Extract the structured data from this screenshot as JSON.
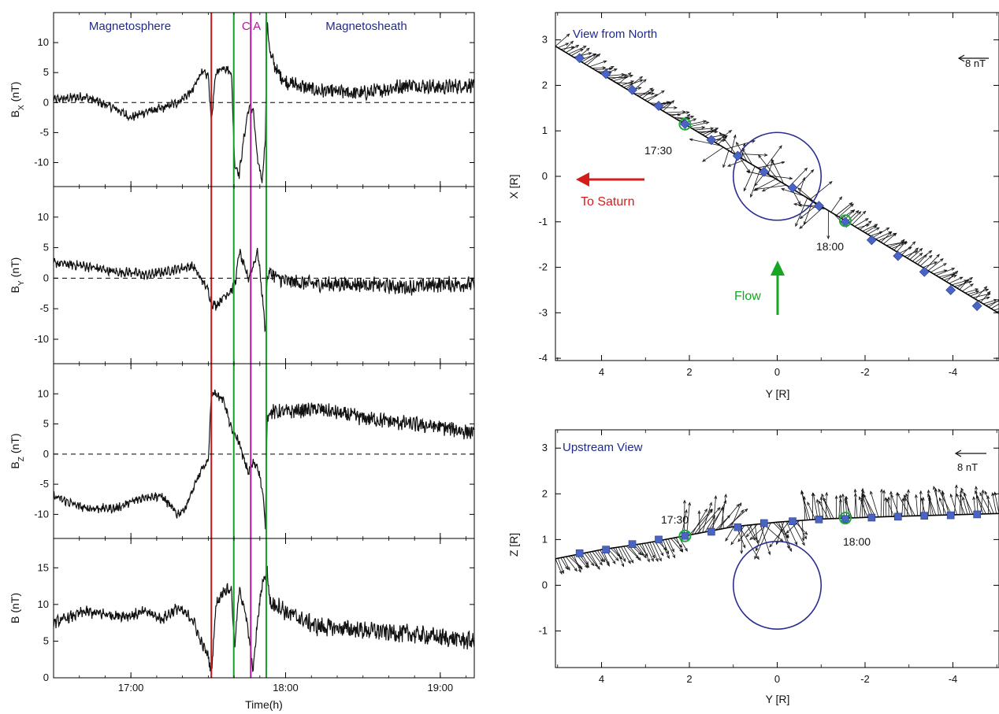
{
  "chart_data": [
    {
      "type": "line",
      "id": "time-series",
      "xlabel": "Time(h)",
      "xlim": [
        16.5,
        19.22
      ],
      "xticks": [
        17.0,
        18.0,
        19.0
      ],
      "xtick_labels": [
        "17:00",
        "18:00",
        "19:00"
      ],
      "region_labels": [
        {
          "text": "Magnetosphere",
          "x": 16.85,
          "color": "#1f2a8a"
        },
        {
          "text": "C A",
          "x": 17.775,
          "color": "#b1179a"
        },
        {
          "text": "Magnetosheath",
          "x": 18.4,
          "color": "#1f2a8a"
        }
      ],
      "vertical_markers": [
        {
          "x": 17.52,
          "color": "#c0161c"
        },
        {
          "x": 17.665,
          "color": "#15a02a"
        },
        {
          "x": 17.775,
          "color": "#b1179a"
        },
        {
          "x": 17.875,
          "color": "#15a02a"
        }
      ],
      "panels": [
        {
          "ylabel": "B_X (nT)",
          "ylabel_main": "B",
          "ylabel_sub": "X",
          "ylabel_unit": "(nT)",
          "ylim": [
            -14,
            15
          ],
          "yticks": [
            -10,
            -5,
            0,
            5,
            10
          ],
          "zero_line": true,
          "series": [
            {
              "x": [
                16.5,
                16.7,
                16.9,
                17.0,
                17.1,
                17.2,
                17.3,
                17.4,
                17.45,
                17.5,
                17.52,
                17.55,
                17.6,
                17.65,
                17.67,
                17.7,
                17.73,
                17.76,
                17.79,
                17.82,
                17.85,
                17.87,
                17.88,
                17.9,
                17.95,
                18.0,
                18.2,
                18.5,
                18.8,
                19.0,
                19.22
              ],
              "y": [
                0.5,
                1,
                -1,
                -2.5,
                -1.5,
                -1,
                0,
                2,
                5,
                4.5,
                -3,
                5,
                6,
                5,
                -10,
                -12,
                -6,
                -1,
                -1,
                -10,
                -13,
                -5,
                14,
                8,
                5,
                3.5,
                2,
                1.5,
                3,
                2.5,
                3
              ]
            }
          ]
        },
        {
          "ylabel": "B_Y (nT)",
          "ylabel_main": "B",
          "ylabel_sub": "Y",
          "ylabel_unit": "(nT)",
          "ylim": [
            -14,
            15
          ],
          "yticks": [
            -10,
            -5,
            0,
            5,
            10
          ],
          "zero_line": true,
          "series": [
            {
              "x": [
                16.5,
                16.7,
                16.9,
                17.0,
                17.1,
                17.2,
                17.3,
                17.4,
                17.45,
                17.5,
                17.52,
                17.55,
                17.6,
                17.65,
                17.68,
                17.7,
                17.73,
                17.76,
                17.79,
                17.82,
                17.85,
                17.87,
                17.88,
                17.9,
                17.95,
                18.0,
                18.2,
                18.5,
                18.8,
                19.0,
                19.22
              ],
              "y": [
                2.5,
                2,
                1,
                1,
                0.5,
                1,
                1.5,
                2,
                0,
                -2,
                -4,
                -4.5,
                -3,
                -2,
                0,
                4.5,
                2,
                0,
                2,
                4.5,
                -3,
                -9,
                0,
                1,
                0,
                -0.5,
                -1,
                -1,
                -1.5,
                -1,
                -1
              ]
            }
          ]
        },
        {
          "ylabel": "B_Z (nT)",
          "ylabel_main": "B",
          "ylabel_sub": "Z",
          "ylabel_unit": "(nT)",
          "ylim": [
            -14,
            15
          ],
          "yticks": [
            -10,
            -5,
            0,
            5,
            10
          ],
          "zero_line": true,
          "series": [
            {
              "x": [
                16.5,
                16.7,
                16.9,
                17.0,
                17.1,
                17.2,
                17.3,
                17.35,
                17.4,
                17.45,
                17.5,
                17.52,
                17.55,
                17.6,
                17.65,
                17.7,
                17.73,
                17.76,
                17.79,
                17.82,
                17.85,
                17.87,
                17.88,
                17.9,
                17.95,
                18.0,
                18.2,
                18.5,
                18.8,
                19.0,
                19.22
              ],
              "y": [
                -7,
                -9,
                -9,
                -8,
                -7,
                -7,
                -10,
                -9,
                -6,
                -3,
                -1,
                10,
                10,
                9,
                4,
                2,
                -1,
                -3,
                -1.5,
                -2,
                -6,
                -12,
                6,
                7,
                7,
                7,
                7.5,
                6,
                5,
                4.5,
                3.5
              ]
            }
          ]
        },
        {
          "ylabel": "B (nT)",
          "ylabel_main": "B",
          "ylabel_sub": "",
          "ylabel_unit": "(nT)",
          "ylim": [
            0,
            19
          ],
          "yticks": [
            0,
            5,
            10,
            15
          ],
          "zero_line": false,
          "series": [
            {
              "x": [
                16.5,
                16.7,
                16.9,
                17.0,
                17.1,
                17.2,
                17.3,
                17.4,
                17.45,
                17.5,
                17.52,
                17.55,
                17.6,
                17.65,
                17.67,
                17.7,
                17.73,
                17.76,
                17.79,
                17.82,
                17.85,
                17.87,
                17.88,
                17.9,
                17.95,
                18.0,
                18.2,
                18.5,
                18.8,
                19.0,
                19.22
              ],
              "y": [
                7.5,
                9,
                8.5,
                8.5,
                9,
                8,
                9.5,
                8,
                5,
                3,
                0.5,
                10,
                12,
                12,
                4,
                12,
                10,
                6,
                1,
                8,
                13,
                14,
                15,
                10,
                10,
                9,
                7,
                6.5,
                6,
                5.5,
                5
              ]
            }
          ]
        }
      ]
    },
    {
      "type": "vector-field",
      "id": "view-from-north",
      "title": "View from North",
      "xlabel": "Y [R]",
      "ylabel": "X [R]",
      "xlim": [
        5.05,
        -5.05
      ],
      "ylim": [
        -4.05,
        3.6
      ],
      "xticks": [
        4,
        2,
        0,
        -2,
        -4
      ],
      "yticks": [
        -4,
        -3,
        -2,
        -1,
        0,
        1,
        2,
        3
      ],
      "scale_label": "8 nT",
      "trajectory": [
        [
          5.2,
          2.95
        ],
        [
          -5.2,
          -3.1
        ]
      ],
      "markers": [
        [
          4.5,
          2.6
        ],
        [
          3.9,
          2.25
        ],
        [
          3.3,
          1.9
        ],
        [
          2.7,
          1.55
        ],
        [
          2.1,
          1.15
        ],
        [
          1.5,
          0.8
        ],
        [
          0.9,
          0.45
        ],
        [
          0.3,
          0.1
        ],
        [
          -0.35,
          -0.25
        ],
        [
          -0.95,
          -0.65
        ],
        [
          -1.55,
          -1.0
        ],
        [
          -2.15,
          -1.4
        ],
        [
          -2.75,
          -1.75
        ],
        [
          -3.35,
          -2.1
        ],
        [
          -3.95,
          -2.5
        ],
        [
          -4.55,
          -2.85
        ]
      ],
      "time_marks": [
        {
          "label": "17:30",
          "y": 2.1,
          "x": 1.2
        },
        {
          "label": "18:00",
          "y": -1.55,
          "x": -1.0
        }
      ],
      "body_circle": {
        "center": [
          0,
          0
        ],
        "radius": 1.0
      },
      "annotations": [
        {
          "text": "To Saturn",
          "color": "#d31d1d"
        },
        {
          "text": "Flow",
          "color": "#17a524"
        }
      ]
    },
    {
      "type": "vector-field",
      "id": "upstream-view",
      "title": "Upstream View",
      "xlabel": "Y [R]",
      "ylabel": "Z [R]",
      "xlim": [
        5.05,
        -5.05
      ],
      "ylim": [
        -1.8,
        3.4
      ],
      "xticks": [
        4,
        2,
        0,
        -2,
        -4
      ],
      "yticks": [
        -1,
        0,
        1,
        2,
        3
      ],
      "scale_label": "8 nT",
      "trajectory": [
        [
          5.05,
          0.58
        ],
        [
          4.0,
          0.78
        ],
        [
          3.0,
          0.92
        ],
        [
          2.1,
          1.08
        ],
        [
          1.0,
          1.28
        ],
        [
          0.0,
          1.38
        ],
        [
          -1.0,
          1.45
        ],
        [
          -2.5,
          1.5
        ],
        [
          -5.05,
          1.57
        ]
      ],
      "markers": [
        [
          4.5,
          0.7
        ],
        [
          3.9,
          0.78
        ],
        [
          3.3,
          0.9
        ],
        [
          2.7,
          1.0
        ],
        [
          2.1,
          1.08
        ],
        [
          1.5,
          1.17
        ],
        [
          0.9,
          1.27
        ],
        [
          0.3,
          1.36
        ],
        [
          -0.35,
          1.4
        ],
        [
          -0.95,
          1.44
        ],
        [
          -1.55,
          1.45
        ],
        [
          -2.15,
          1.48
        ],
        [
          -2.75,
          1.5
        ],
        [
          -3.35,
          1.52
        ],
        [
          -3.95,
          1.53
        ],
        [
          -4.55,
          1.55
        ]
      ],
      "time_marks": [
        {
          "label": "17:30",
          "y": 2.1,
          "x": 1.08
        },
        {
          "label": "18:00",
          "y": -1.55,
          "x": 1.45
        }
      ],
      "body_circle": {
        "center": [
          0,
          0
        ],
        "radius": 1.0
      }
    }
  ]
}
